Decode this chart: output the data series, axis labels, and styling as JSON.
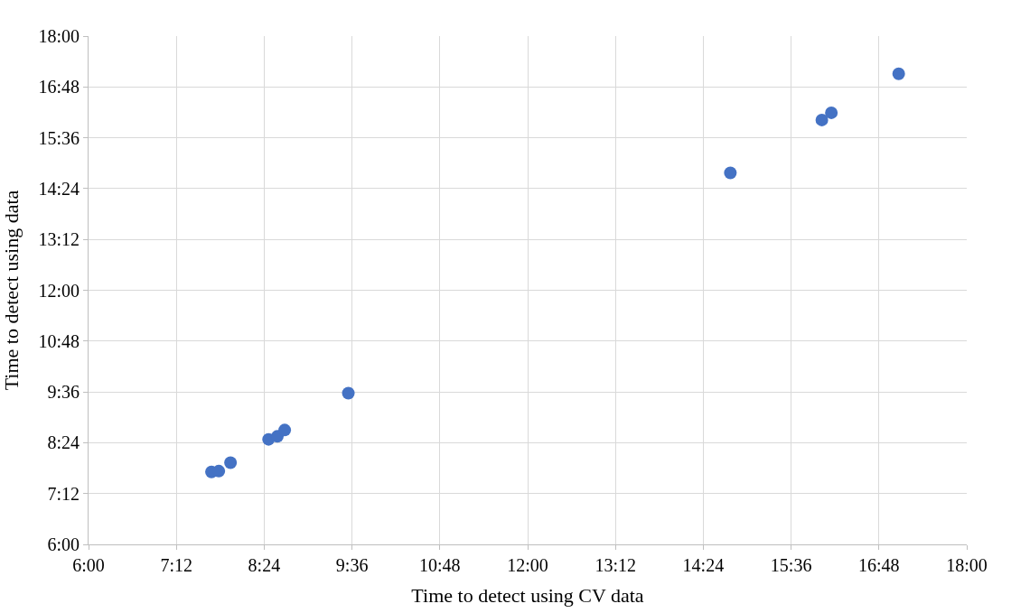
{
  "chart_data": {
    "type": "scatter",
    "xlabel": "Time to detect using CV data",
    "ylabel": "Time to detect using data",
    "x": [
      7.68,
      7.78,
      7.94,
      8.46,
      8.58,
      8.68,
      9.55,
      14.77,
      16.02,
      16.15,
      17.07
    ],
    "series": [
      {
        "color": "#4472c4",
        "values": [
          7.71,
          7.73,
          7.93,
          8.48,
          8.55,
          8.7,
          9.57,
          14.77,
          16.02,
          16.19,
          17.11
        ]
      }
    ],
    "xlim": [
      6,
      18
    ],
    "ylim": [
      6,
      18
    ],
    "xticks": [
      {
        "value": 6,
        "label": "6:00"
      },
      {
        "value": 7.2,
        "label": "7:12"
      },
      {
        "value": 8.4,
        "label": "8:24"
      },
      {
        "value": 9.6,
        "label": "9:36"
      },
      {
        "value": 10.8,
        "label": "10:48"
      },
      {
        "value": 12,
        "label": "12:00"
      },
      {
        "value": 13.2,
        "label": "13:12"
      },
      {
        "value": 14.4,
        "label": "14:24"
      },
      {
        "value": 15.6,
        "label": "15:36"
      },
      {
        "value": 16.8,
        "label": "16:48"
      },
      {
        "value": 18,
        "label": "18:00"
      }
    ],
    "yticks": [
      {
        "value": 6,
        "label": "6:00"
      },
      {
        "value": 7.2,
        "label": "7:12"
      },
      {
        "value": 8.4,
        "label": "8:24"
      },
      {
        "value": 9.6,
        "label": "9:36"
      },
      {
        "value": 10.8,
        "label": "10:48"
      },
      {
        "value": 12,
        "label": "12:00"
      },
      {
        "value": 13.2,
        "label": "13:12"
      },
      {
        "value": 14.4,
        "label": "14:24"
      },
      {
        "value": 15.6,
        "label": "15:36"
      },
      {
        "value": 16.8,
        "label": "16:48"
      },
      {
        "value": 18,
        "label": "18:00"
      }
    ],
    "grid": true,
    "marker": "circle"
  }
}
